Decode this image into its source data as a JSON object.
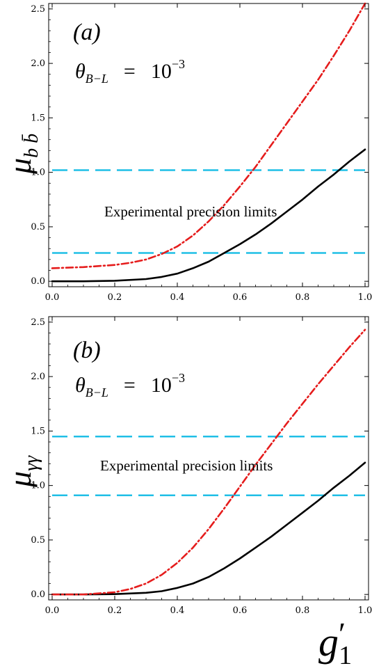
{
  "chart_data": [
    {
      "type": "line",
      "panel_label": "(a)",
      "theta_symbol": "θ",
      "theta_sub": "B−L",
      "theta_eq": "=",
      "theta_value_base": "10",
      "theta_value_exp": "−3",
      "ylabel_main": "μ",
      "ylabel_sub": "b b̄",
      "xlabel": "",
      "annotation": "Experimental precision limits",
      "xlim": [
        0,
        1
      ],
      "ylim": [
        -0.05,
        2.55
      ],
      "xticks": [
        "0.0",
        "0.2",
        "0.4",
        "0.6",
        "0.8",
        "1.0"
      ],
      "yticks": [
        "0.0",
        "0.5",
        "1.0",
        "1.5",
        "2.0",
        "2.5"
      ],
      "hlines": [
        {
          "y": 1.02,
          "color": "#1fbfe6"
        },
        {
          "y": 0.26,
          "color": "#1fbfe6"
        }
      ],
      "series": [
        {
          "style": "solid",
          "color": "#000000",
          "x": [
            0,
            0.1,
            0.2,
            0.3,
            0.35,
            0.4,
            0.45,
            0.5,
            0.55,
            0.6,
            0.65,
            0.7,
            0.75,
            0.8,
            0.85,
            0.9,
            0.95,
            1.0
          ],
          "y": [
            0.0,
            0.0,
            0.005,
            0.02,
            0.04,
            0.07,
            0.12,
            0.18,
            0.26,
            0.34,
            0.43,
            0.53,
            0.64,
            0.75,
            0.87,
            0.98,
            1.1,
            1.21
          ]
        },
        {
          "style": "dashdot",
          "color": "#e51c1c",
          "x": [
            0,
            0.1,
            0.2,
            0.25,
            0.3,
            0.35,
            0.4,
            0.45,
            0.5,
            0.55,
            0.6,
            0.65,
            0.7,
            0.75,
            0.8,
            0.85,
            0.9,
            0.95,
            1.0
          ],
          "y": [
            0.12,
            0.13,
            0.15,
            0.17,
            0.2,
            0.25,
            0.32,
            0.42,
            0.55,
            0.7,
            0.87,
            1.05,
            1.25,
            1.45,
            1.65,
            1.85,
            2.07,
            2.3,
            2.55
          ]
        }
      ]
    },
    {
      "type": "line",
      "panel_label": "(b)",
      "theta_symbol": "θ",
      "theta_sub": "B−L",
      "theta_eq": "=",
      "theta_value_base": "10",
      "theta_value_exp": "−3",
      "ylabel_main": "μ",
      "ylabel_sub": "γγ",
      "xlabel_main": "g",
      "xlabel_prime": "′",
      "xlabel_sub": "1",
      "annotation": "Experimental precision limits",
      "xlim": [
        0,
        1
      ],
      "ylim": [
        -0.05,
        2.55
      ],
      "xticks": [
        "0.0",
        "0.2",
        "0.4",
        "0.6",
        "0.8",
        "1.0"
      ],
      "yticks": [
        "0.0",
        "0.5",
        "1.0",
        "1.5",
        "2.0",
        "2.5"
      ],
      "hlines": [
        {
          "y": 1.45,
          "color": "#1fbfe6"
        },
        {
          "y": 0.91,
          "color": "#1fbfe6"
        }
      ],
      "series": [
        {
          "style": "solid",
          "color": "#000000",
          "x": [
            0,
            0.1,
            0.2,
            0.3,
            0.35,
            0.4,
            0.45,
            0.5,
            0.55,
            0.6,
            0.65,
            0.7,
            0.75,
            0.8,
            0.85,
            0.9,
            0.95,
            1.0
          ],
          "y": [
            0.0,
            0.0,
            0.003,
            0.015,
            0.03,
            0.06,
            0.1,
            0.16,
            0.24,
            0.33,
            0.43,
            0.53,
            0.64,
            0.75,
            0.86,
            0.98,
            1.09,
            1.21
          ]
        },
        {
          "style": "dashdot",
          "color": "#e51c1c",
          "x": [
            0,
            0.1,
            0.2,
            0.25,
            0.3,
            0.35,
            0.4,
            0.45,
            0.5,
            0.55,
            0.6,
            0.65,
            0.7,
            0.75,
            0.8,
            0.85,
            0.9,
            0.95,
            1.0
          ],
          "y": [
            0.0,
            0.0,
            0.02,
            0.05,
            0.1,
            0.18,
            0.29,
            0.43,
            0.6,
            0.79,
            0.99,
            1.19,
            1.38,
            1.57,
            1.75,
            1.93,
            2.1,
            2.27,
            2.43
          ]
        }
      ]
    }
  ]
}
